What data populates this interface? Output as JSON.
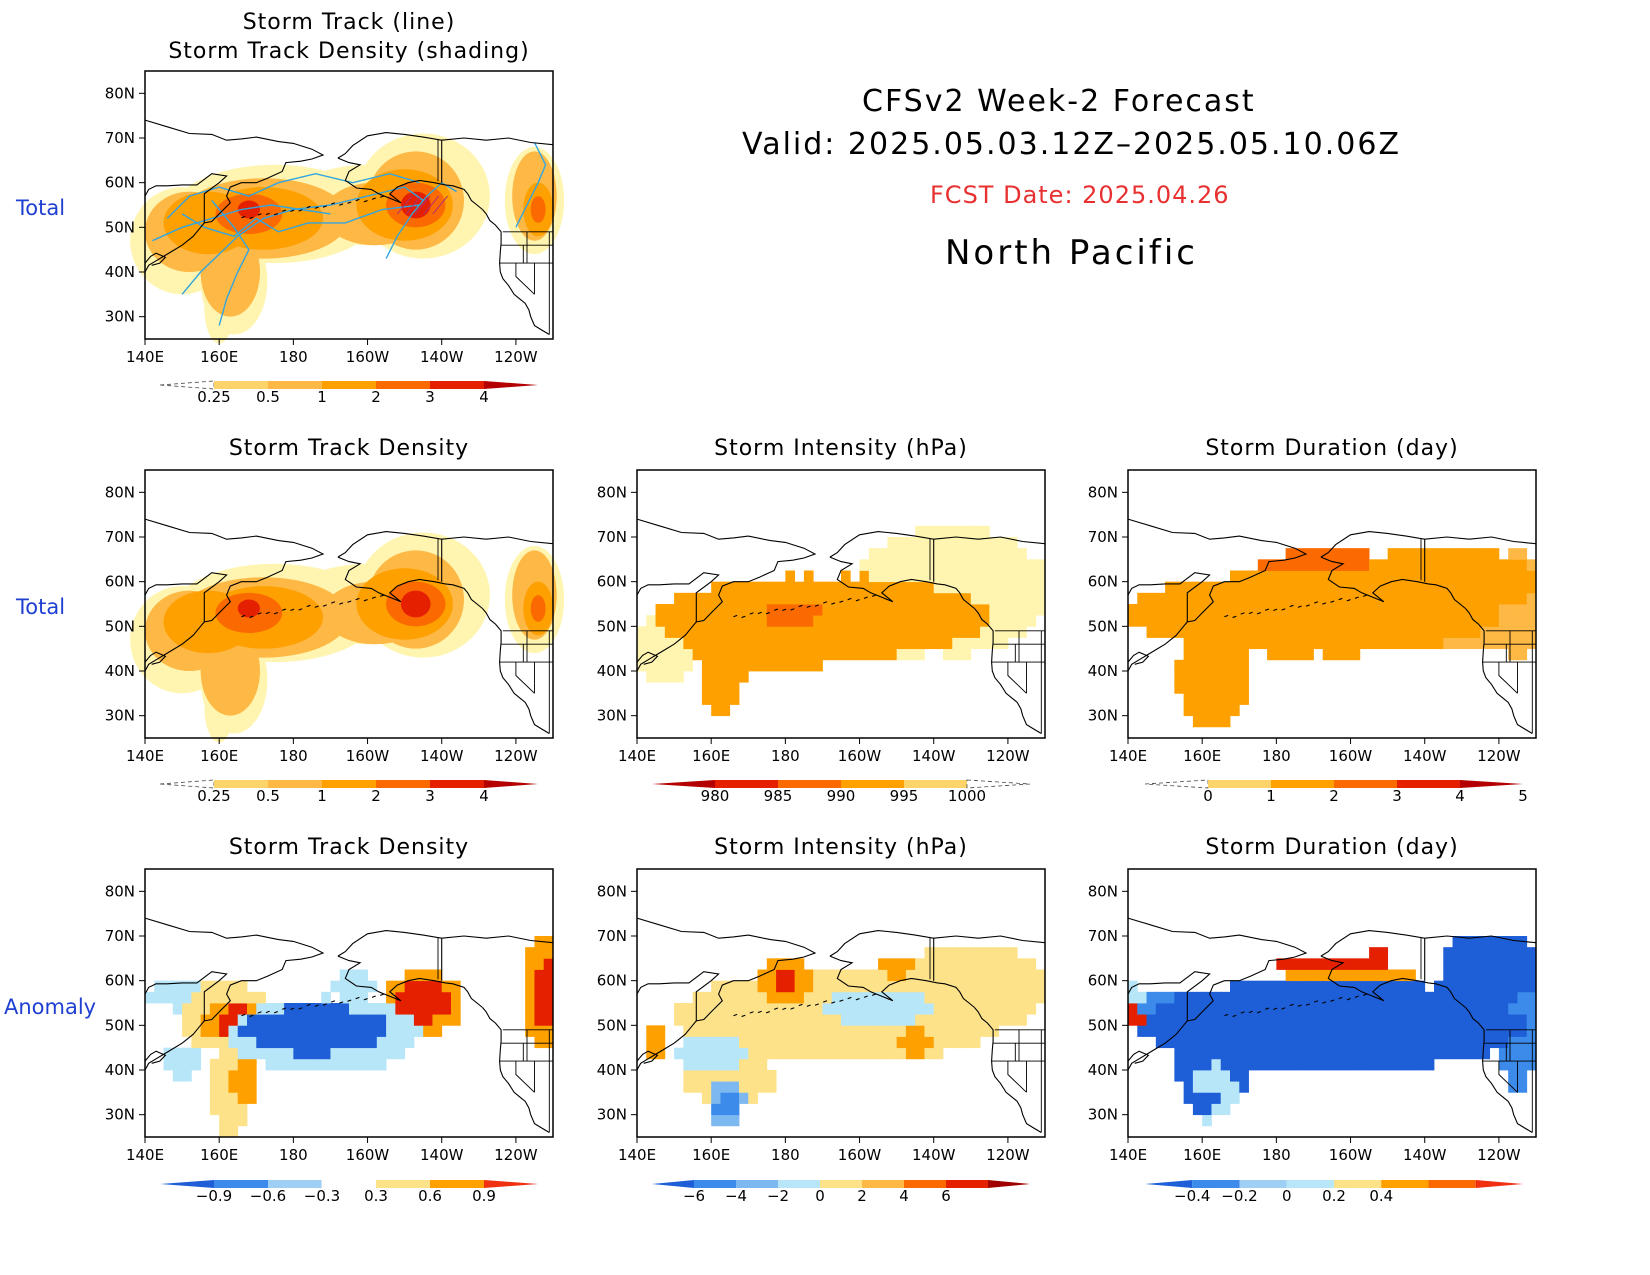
{
  "header": {
    "line1": "CFSv2 Week-2 Forecast",
    "line2": "Valid: 2025.05.03.12Z–2025.05.10.06Z",
    "fcst": "FCST Date: 2025.04.26",
    "region": "North Pacific"
  },
  "rows": {
    "r1": "Total",
    "r2": "Total",
    "r3": "Anomaly"
  },
  "panels": {
    "p1": {
      "title1": "Storm Track (line)",
      "title2": "Storm Track Density (shading)"
    },
    "p2": {
      "title": "Storm Track Density"
    },
    "p3": {
      "title": "Storm Intensity (hPa)"
    },
    "p4": {
      "title": "Storm Duration (day)"
    },
    "p5": {
      "title": "Storm Track Density"
    },
    "p6": {
      "title": "Storm Intensity (hPa)"
    },
    "p7": {
      "title": "Storm Duration (day)"
    }
  },
  "axes": {
    "lat_labels": [
      "80N",
      "70N",
      "60N",
      "50N",
      "40N",
      "30N"
    ],
    "lon_labels": [
      "140E",
      "160E",
      "180",
      "160W",
      "140W",
      "120W"
    ]
  },
  "colorbars": {
    "density_total": {
      "labels": [
        "0.25",
        "0.5",
        "1",
        "2",
        "3",
        "4"
      ],
      "colors": [
        "#fff5b0",
        "#fdd36a",
        "#fdb845",
        "#fda000",
        "#fb6a00",
        "#e42000",
        "#b40000"
      ]
    },
    "intensity_total": {
      "labels": [
        "980",
        "985",
        "990",
        "995",
        "1000"
      ],
      "colors": [
        "#b40000",
        "#e42000",
        "#fb6a00",
        "#fda000",
        "#fdd36a",
        "#fff5b0"
      ]
    },
    "duration_total": {
      "labels": [
        "0",
        "1",
        "2",
        "3",
        "4",
        "5"
      ],
      "colors": [
        "#fff5b0",
        "#fdd36a",
        "#fda000",
        "#fb6a00",
        "#e42000",
        "#b40000"
      ]
    },
    "density_anom": {
      "labels": [
        "−0.9",
        "−0.6",
        "−0.3",
        "0.3",
        "0.6",
        "0.9"
      ],
      "colors": [
        "#1e5fd8",
        "#3c8bea",
        "#9ecff5",
        "#ffffff",
        "#fde28a",
        "#fda000",
        "#f03010"
      ]
    },
    "intensity_anom": {
      "labels": [
        "−6",
        "−4",
        "−2",
        "0",
        "2",
        "4",
        "6"
      ],
      "colors": [
        "#1e5fd8",
        "#3c8bea",
        "#7db8f0",
        "#b7e6f8",
        "#fde28a",
        "#fdb845",
        "#fb6a00",
        "#e42000",
        "#a00000"
      ]
    },
    "duration_anom": {
      "labels": [
        "−0.4",
        "−0.2",
        "0",
        "0.2",
        "0.4"
      ],
      "colors": [
        "#1e5fd8",
        "#3c8bea",
        "#9ecff5",
        "#b7e6f8",
        "#fde28a",
        "#fda000",
        "#fb6a00",
        "#f03010"
      ]
    }
  }
}
